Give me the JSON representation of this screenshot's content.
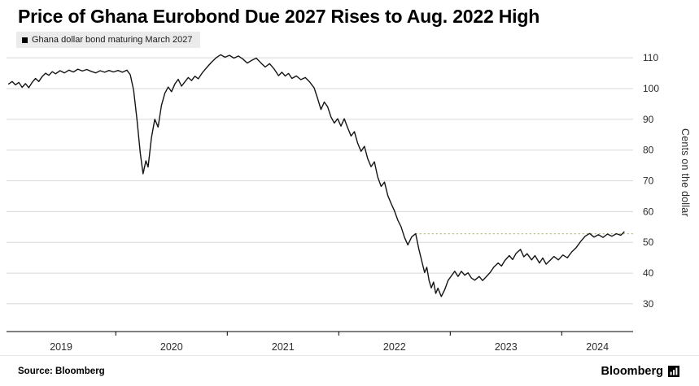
{
  "header": {
    "title": "Price of Ghana Eurobond Due 2027 Rises to Aug. 2022 High"
  },
  "legend": {
    "label": "Ghana dollar bond maturing March 2027"
  },
  "footer": {
    "source_label": "Source: Bloomberg",
    "brand_name": "Bloomberg"
  },
  "colors": {
    "line": "#141414",
    "reference": "#a9c47f",
    "grid": "#d8d8d8",
    "axis": "#000000",
    "legend_bg": "#ebebeb"
  },
  "chart_data": {
    "type": "line",
    "title": "Price of Ghana Eurobond Due 2027 Rises to Aug. 2022 High",
    "ylabel": "Cents on the dollar",
    "xlabel": "",
    "xlim": [
      2019.02,
      2024.64
    ],
    "ylim": [
      21,
      114
    ],
    "yticks": [
      30,
      40,
      50,
      60,
      70,
      80,
      90,
      100,
      110
    ],
    "xticks": [
      2019,
      2020,
      2021,
      2022,
      2023,
      2024
    ],
    "grid": "horizontal",
    "legend_position": "top-left",
    "reference_line": {
      "value": 52.8,
      "x_start": 2022.69,
      "color": "#a9c47f",
      "style": "dotted"
    },
    "series": [
      {
        "name": "Ghana dollar bond maturing March 2027",
        "color": "#141414",
        "points": [
          [
            2019.04,
            101.5
          ],
          [
            2019.07,
            102.3
          ],
          [
            2019.1,
            101.2
          ],
          [
            2019.13,
            102.0
          ],
          [
            2019.16,
            100.4
          ],
          [
            2019.19,
            101.6
          ],
          [
            2019.22,
            100.3
          ],
          [
            2019.25,
            102.0
          ],
          [
            2019.28,
            103.3
          ],
          [
            2019.31,
            102.3
          ],
          [
            2019.34,
            103.9
          ],
          [
            2019.37,
            105.0
          ],
          [
            2019.4,
            104.3
          ],
          [
            2019.43,
            105.5
          ],
          [
            2019.46,
            104.8
          ],
          [
            2019.5,
            105.8
          ],
          [
            2019.54,
            105.1
          ],
          [
            2019.58,
            106.0
          ],
          [
            2019.62,
            105.4
          ],
          [
            2019.66,
            106.3
          ],
          [
            2019.7,
            105.7
          ],
          [
            2019.74,
            106.2
          ],
          [
            2019.78,
            105.6
          ],
          [
            2019.82,
            105.1
          ],
          [
            2019.86,
            105.8
          ],
          [
            2019.9,
            105.3
          ],
          [
            2019.94,
            105.9
          ],
          [
            2019.98,
            105.4
          ],
          [
            2020.02,
            105.9
          ],
          [
            2020.06,
            105.3
          ],
          [
            2020.1,
            106.0
          ],
          [
            2020.13,
            104.5
          ],
          [
            2020.16,
            99.5
          ],
          [
            2020.19,
            90.0
          ],
          [
            2020.22,
            79.0
          ],
          [
            2020.245,
            72.3
          ],
          [
            2020.27,
            76.5
          ],
          [
            2020.29,
            74.5
          ],
          [
            2020.32,
            84.0
          ],
          [
            2020.35,
            90.0
          ],
          [
            2020.38,
            87.5
          ],
          [
            2020.41,
            94.5
          ],
          [
            2020.44,
            98.5
          ],
          [
            2020.47,
            100.5
          ],
          [
            2020.5,
            99.0
          ],
          [
            2020.53,
            101.5
          ],
          [
            2020.56,
            103.0
          ],
          [
            2020.59,
            100.8
          ],
          [
            2020.62,
            102.2
          ],
          [
            2020.65,
            103.6
          ],
          [
            2020.68,
            102.6
          ],
          [
            2020.71,
            104.0
          ],
          [
            2020.74,
            103.2
          ],
          [
            2020.78,
            105.3
          ],
          [
            2020.82,
            107.0
          ],
          [
            2020.86,
            108.6
          ],
          [
            2020.9,
            110.0
          ],
          [
            2020.94,
            111.0
          ],
          [
            2020.98,
            110.2
          ],
          [
            2021.02,
            110.8
          ],
          [
            2021.06,
            109.9
          ],
          [
            2021.1,
            110.6
          ],
          [
            2021.14,
            109.6
          ],
          [
            2021.18,
            108.3
          ],
          [
            2021.22,
            109.2
          ],
          [
            2021.26,
            109.9
          ],
          [
            2021.3,
            108.4
          ],
          [
            2021.34,
            107.0
          ],
          [
            2021.38,
            108.1
          ],
          [
            2021.42,
            106.4
          ],
          [
            2021.46,
            104.2
          ],
          [
            2021.49,
            105.3
          ],
          [
            2021.52,
            104.1
          ],
          [
            2021.55,
            104.9
          ],
          [
            2021.58,
            103.3
          ],
          [
            2021.62,
            104.1
          ],
          [
            2021.66,
            102.9
          ],
          [
            2021.7,
            103.6
          ],
          [
            2021.74,
            102.1
          ],
          [
            2021.78,
            100.2
          ],
          [
            2021.81,
            96.8
          ],
          [
            2021.84,
            93.2
          ],
          [
            2021.87,
            95.6
          ],
          [
            2021.9,
            94.1
          ],
          [
            2021.93,
            90.8
          ],
          [
            2021.96,
            88.8
          ],
          [
            2021.99,
            90.2
          ],
          [
            2022.02,
            87.8
          ],
          [
            2022.05,
            90.2
          ],
          [
            2022.08,
            87.2
          ],
          [
            2022.11,
            84.6
          ],
          [
            2022.14,
            86.0
          ],
          [
            2022.17,
            82.2
          ],
          [
            2022.2,
            79.6
          ],
          [
            2022.23,
            81.2
          ],
          [
            2022.26,
            77.2
          ],
          [
            2022.29,
            74.6
          ],
          [
            2022.32,
            76.2
          ],
          [
            2022.35,
            71.2
          ],
          [
            2022.38,
            68.2
          ],
          [
            2022.41,
            69.6
          ],
          [
            2022.44,
            65.2
          ],
          [
            2022.47,
            62.6
          ],
          [
            2022.5,
            60.2
          ],
          [
            2022.53,
            57.2
          ],
          [
            2022.56,
            55.0
          ],
          [
            2022.59,
            51.6
          ],
          [
            2022.62,
            49.2
          ],
          [
            2022.655,
            51.8
          ],
          [
            2022.69,
            52.8
          ],
          [
            2022.72,
            47.6
          ],
          [
            2022.75,
            43.2
          ],
          [
            2022.77,
            40.2
          ],
          [
            2022.79,
            41.9
          ],
          [
            2022.81,
            37.6
          ],
          [
            2022.83,
            35.2
          ],
          [
            2022.85,
            37.1
          ],
          [
            2022.87,
            33.4
          ],
          [
            2022.89,
            35.1
          ],
          [
            2022.92,
            32.4
          ],
          [
            2022.95,
            34.6
          ],
          [
            2022.98,
            37.6
          ],
          [
            2023.01,
            39.1
          ],
          [
            2023.04,
            40.6
          ],
          [
            2023.07,
            38.9
          ],
          [
            2023.1,
            40.6
          ],
          [
            2023.13,
            39.3
          ],
          [
            2023.16,
            40.1
          ],
          [
            2023.19,
            38.4
          ],
          [
            2023.22,
            37.7
          ],
          [
            2023.26,
            38.9
          ],
          [
            2023.29,
            37.6
          ],
          [
            2023.32,
            38.7
          ],
          [
            2023.36,
            40.3
          ],
          [
            2023.39,
            41.9
          ],
          [
            2023.43,
            43.3
          ],
          [
            2023.46,
            42.3
          ],
          [
            2023.49,
            44.1
          ],
          [
            2023.53,
            45.7
          ],
          [
            2023.56,
            44.4
          ],
          [
            2023.59,
            46.4
          ],
          [
            2023.63,
            47.7
          ],
          [
            2023.66,
            45.3
          ],
          [
            2023.69,
            46.3
          ],
          [
            2023.73,
            44.3
          ],
          [
            2023.76,
            45.7
          ],
          [
            2023.8,
            43.3
          ],
          [
            2023.83,
            44.9
          ],
          [
            2023.86,
            42.9
          ],
          [
            2023.9,
            44.3
          ],
          [
            2023.93,
            45.4
          ],
          [
            2023.97,
            44.3
          ],
          [
            2024.01,
            45.9
          ],
          [
            2024.05,
            45.0
          ],
          [
            2024.09,
            46.9
          ],
          [
            2024.13,
            48.3
          ],
          [
            2024.17,
            50.3
          ],
          [
            2024.21,
            52.0
          ],
          [
            2024.25,
            52.9
          ],
          [
            2024.29,
            51.7
          ],
          [
            2024.33,
            52.5
          ],
          [
            2024.37,
            51.6
          ],
          [
            2024.41,
            52.7
          ],
          [
            2024.45,
            52.0
          ],
          [
            2024.49,
            52.8
          ],
          [
            2024.53,
            52.3
          ],
          [
            2024.56,
            53.4
          ]
        ]
      }
    ]
  }
}
